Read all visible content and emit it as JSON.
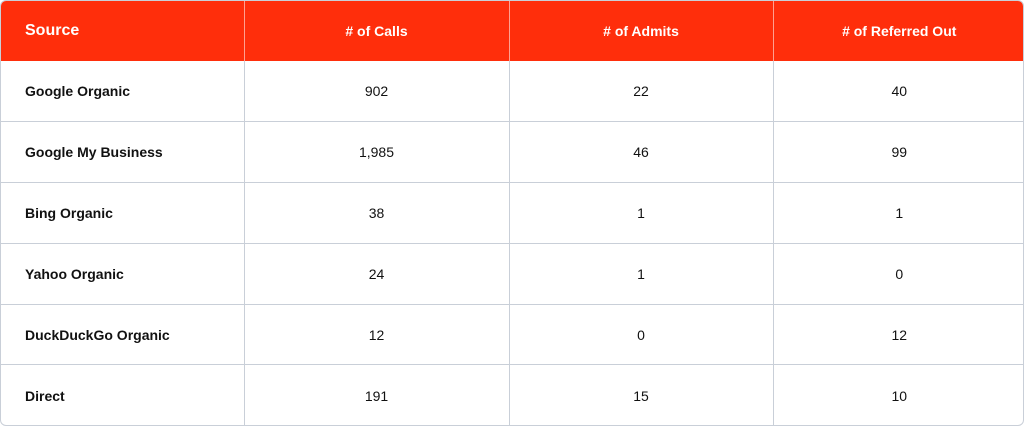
{
  "table": {
    "headers": [
      "Source",
      "# of Calls",
      "# of Admits",
      "# of Referred Out"
    ],
    "rows": [
      [
        "Google Organic",
        "902",
        "22",
        "40"
      ],
      [
        "Google My Business",
        "1,985",
        "46",
        "99"
      ],
      [
        "Bing Organic",
        "38",
        "1",
        "1"
      ],
      [
        "Yahoo Organic",
        "24",
        "1",
        "0"
      ],
      [
        "DuckDuckGo Organic",
        "12",
        "0",
        "12"
      ],
      [
        "Direct",
        "191",
        "15",
        "10"
      ]
    ]
  },
  "colors": {
    "header_background": "#ff2e0b",
    "header_text": "#ffffff",
    "border": "#c9cfd8",
    "body_text": "#111111"
  }
}
